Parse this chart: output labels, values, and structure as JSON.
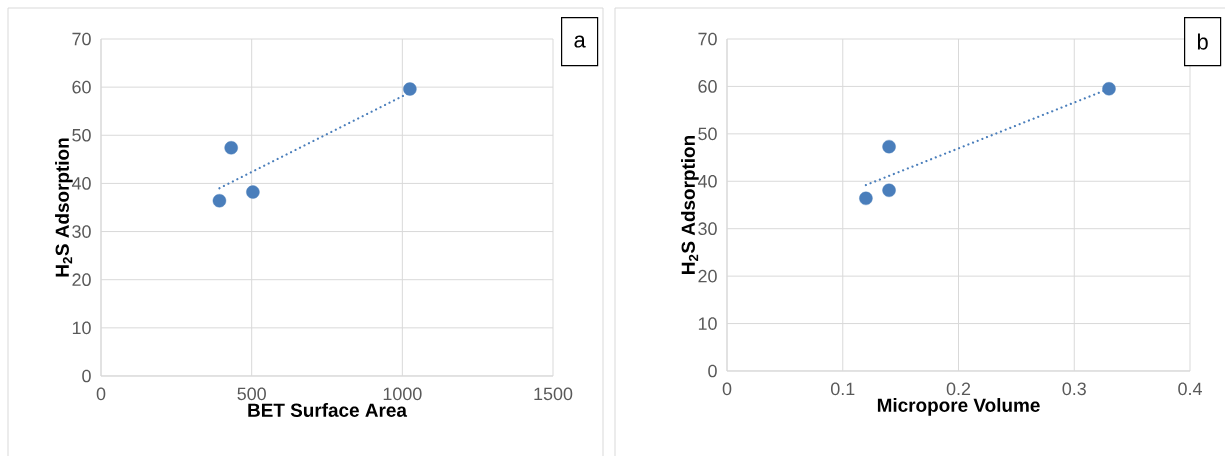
{
  "chart_data": [
    {
      "type": "scatter",
      "xlabel": "BET Surface Area",
      "ylabel": "H$_{2}$S Adsorption",
      "annotations": [
        "a"
      ],
      "xlim": [
        0,
        1500
      ],
      "xticks": [
        0,
        500,
        1000,
        1500
      ],
      "ylim": [
        0,
        70
      ],
      "yticks": [
        0,
        10,
        20,
        30,
        40,
        50,
        60,
        70
      ],
      "grid": true,
      "series": [
        {
          "type": "scatter",
          "color": "#4a7ebb",
          "marker": "circle",
          "x": [
            393,
            432,
            504,
            1025
          ],
          "values": [
            36.4,
            47.4,
            38.2,
            59.6
          ]
        },
        {
          "type": "line",
          "color": "#4a7ebb",
          "marker": "none",
          "line_style": "dotted",
          "x": [
            393,
            1025
          ],
          "values": [
            39.0,
            58.9
          ]
        }
      ]
    },
    {
      "type": "scatter",
      "xlabel": "Micropore Volume",
      "ylabel": "H$_{2}$S Adsorption",
      "annotations": [
        "b"
      ],
      "xlim": [
        0,
        0.4
      ],
      "xticks": [
        0,
        0.1,
        0.2,
        0.3,
        0.4
      ],
      "ylim": [
        0,
        70
      ],
      "yticks": [
        0,
        10,
        20,
        30,
        40,
        50,
        60,
        70
      ],
      "grid": true,
      "series": [
        {
          "type": "scatter",
          "color": "#4a7ebb",
          "marker": "circle",
          "x": [
            0.12,
            0.14,
            0.14,
            0.33
          ],
          "values": [
            36.4,
            47.3,
            38.1,
            59.5
          ]
        },
        {
          "type": "line",
          "color": "#4a7ebb",
          "marker": "none",
          "line_style": "dotted",
          "x": [
            0.12,
            0.33
          ],
          "values": [
            39.2,
            59.5
          ]
        }
      ]
    }
  ]
}
